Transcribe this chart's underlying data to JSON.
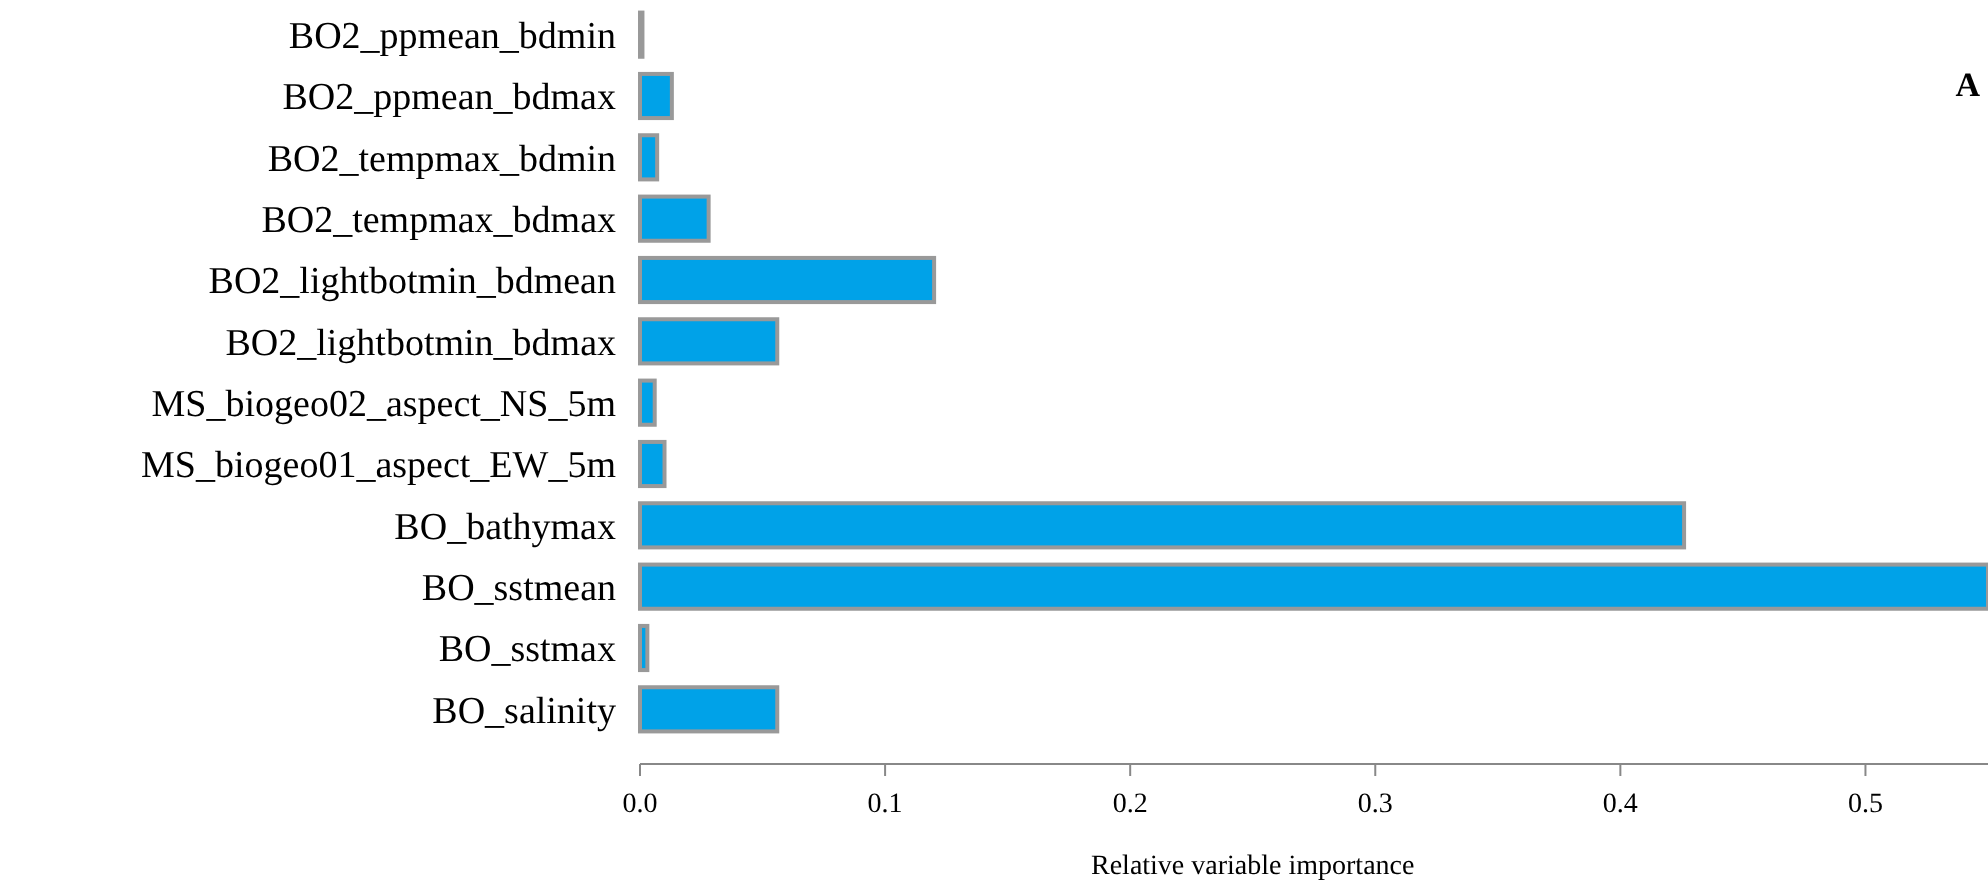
{
  "chart_data": {
    "type": "bar",
    "orientation": "horizontal",
    "xlabel": "Relative variable importance",
    "annotations": [
      "A"
    ],
    "categories": [
      "BO2_ppmean_bdmin",
      "BO2_ppmean_bdmax",
      "BO2_tempmax_bdmin",
      "BO2_tempmax_bdmax",
      "BO2_lightbotmin_bdmean",
      "BO2_lightbotmin_bdmax",
      "MS_biogeo02_aspect_NS_5m",
      "MS_biogeo01_aspect_EW_5m",
      "BO_bathymax",
      "BO_sstmean",
      "BO_sstmax",
      "BO_salinity"
    ],
    "values": [
      0.001,
      0.013,
      0.007,
      0.028,
      0.12,
      0.056,
      0.006,
      0.01,
      0.426,
      0.55,
      0.003,
      0.056
    ],
    "color": "#00a2e8",
    "xlim": [
      0,
      0.55
    ],
    "xticks": [
      {
        "value": 0,
        "label": "0.0"
      },
      0.1,
      0.2,
      0.3,
      0.4,
      0.5
    ],
    "grid": false
  }
}
